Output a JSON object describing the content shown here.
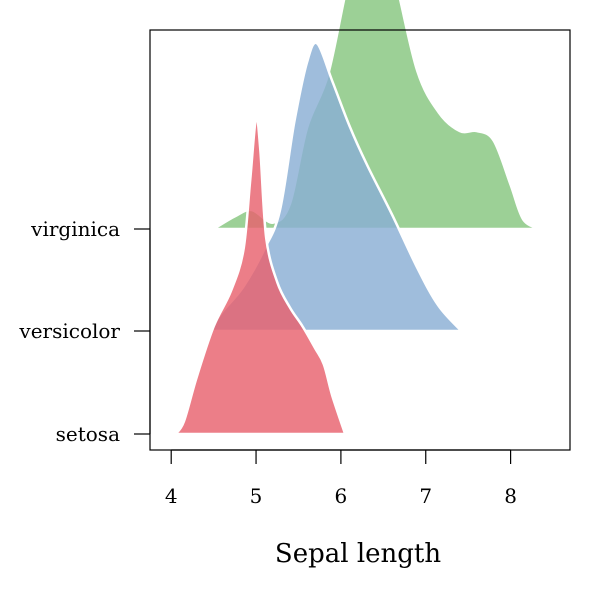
{
  "chart_data": {
    "type": "area",
    "subtype": "ridgeline",
    "title": "",
    "xlabel": "Sepal length",
    "ylabel": "",
    "xlim": [
      3.75,
      8.7
    ],
    "xticks": [
      4,
      5,
      6,
      7,
      8
    ],
    "xtick_labels": [
      "4",
      "5",
      "6",
      "7",
      "8"
    ],
    "categories": [
      "setosa",
      "versicolor",
      "virginica"
    ],
    "grid": false,
    "legend": "none",
    "series": [
      {
        "name": "setosa",
        "color": "#e8616e",
        "points": [
          [
            4.05,
            0.0
          ],
          [
            4.15,
            0.04
          ],
          [
            4.3,
            0.18
          ],
          [
            4.5,
            0.34
          ],
          [
            4.7,
            0.45
          ],
          [
            4.85,
            0.58
          ],
          [
            4.93,
            0.8
          ],
          [
            5.0,
            1.0
          ],
          [
            5.05,
            0.9
          ],
          [
            5.12,
            0.62
          ],
          [
            5.25,
            0.48
          ],
          [
            5.4,
            0.4
          ],
          [
            5.55,
            0.34
          ],
          [
            5.7,
            0.27
          ],
          [
            5.8,
            0.22
          ],
          [
            5.9,
            0.12
          ],
          [
            6.05,
            0.0
          ]
        ]
      },
      {
        "name": "versicolor",
        "color": "#8aaed4",
        "points": [
          [
            4.45,
            0.0
          ],
          [
            4.6,
            0.06
          ],
          [
            4.85,
            0.14
          ],
          [
            5.1,
            0.26
          ],
          [
            5.28,
            0.38
          ],
          [
            5.45,
            0.66
          ],
          [
            5.6,
            0.85
          ],
          [
            5.72,
            0.91
          ],
          [
            5.9,
            0.79
          ],
          [
            6.1,
            0.65
          ],
          [
            6.3,
            0.53
          ],
          [
            6.6,
            0.37
          ],
          [
            6.9,
            0.2
          ],
          [
            7.15,
            0.08
          ],
          [
            7.42,
            0.0
          ]
        ]
      },
      {
        "name": "virginica",
        "color": "#86c67f",
        "points": [
          [
            4.5,
            0.0
          ],
          [
            4.75,
            0.04
          ],
          [
            4.95,
            0.06
          ],
          [
            5.2,
            0.02
          ],
          [
            5.4,
            0.08
          ],
          [
            5.6,
            0.32
          ],
          [
            5.85,
            0.49
          ],
          [
            6.1,
            0.8
          ],
          [
            6.3,
            0.94
          ],
          [
            6.45,
            0.96
          ],
          [
            6.65,
            0.78
          ],
          [
            6.9,
            0.5
          ],
          [
            7.15,
            0.37
          ],
          [
            7.4,
            0.31
          ],
          [
            7.6,
            0.31
          ],
          [
            7.8,
            0.28
          ],
          [
            8.0,
            0.14
          ],
          [
            8.15,
            0.03
          ],
          [
            8.35,
            0.0
          ]
        ]
      }
    ]
  }
}
